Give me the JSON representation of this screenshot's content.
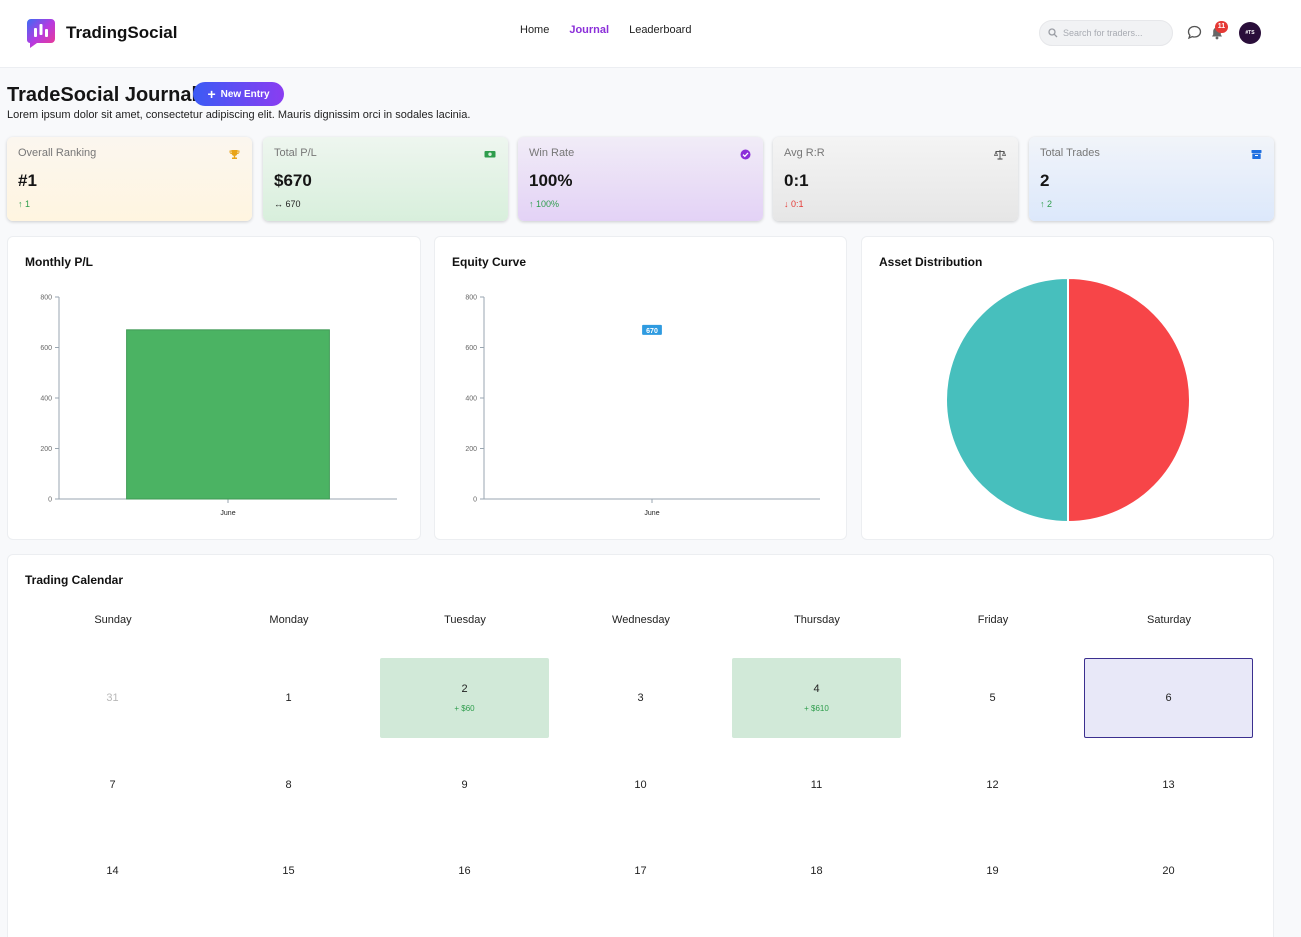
{
  "header": {
    "brand": "TradingSocial",
    "nav": [
      {
        "label": "Home",
        "active": false
      },
      {
        "label": "Journal",
        "active": true
      },
      {
        "label": "Leaderboard",
        "active": false
      }
    ],
    "search": {
      "placeholder": "Search for traders...",
      "value": ""
    },
    "notifications_count": "11",
    "avatar_text": "#TS"
  },
  "page": {
    "title": "TradeSocial Journal",
    "new_entry_label": "New Entry",
    "subtitle": "Lorem ipsum dolor sit amet, consectetur adipiscing elit. Mauris dignissim orci in sodales lacinia."
  },
  "stats": [
    {
      "label": "Overall Ranking",
      "value": "#1",
      "change": "↑ 1",
      "trend": "up",
      "icon": "trophy-icon",
      "color": "#e8a317"
    },
    {
      "label": "Total P/L",
      "value": "$670",
      "change": "↔ 670",
      "trend": "neutral",
      "icon": "cash-icon",
      "color": "#2e9d4c"
    },
    {
      "label": "Win Rate",
      "value": "100%",
      "change": "↑ 100%",
      "trend": "up",
      "icon": "check-badge-icon",
      "color": "#8b2fd9"
    },
    {
      "label": "Avg R:R",
      "value": "0:1",
      "change": "↓ 0:1",
      "trend": "down",
      "icon": "scale-icon",
      "color": "#555555"
    },
    {
      "label": "Total Trades",
      "value": "2",
      "change": "↑ 2",
      "trend": "up",
      "icon": "archive-icon",
      "color": "#1e6fe0"
    }
  ],
  "charts": {
    "monthly_title": "Monthly P/L",
    "equity_title": "Equity Curve",
    "asset_title": "Asset Distribution"
  },
  "chart_data": [
    {
      "type": "bar",
      "title": "Monthly P/L",
      "categories": [
        "June"
      ],
      "values": [
        670
      ],
      "ylim": [
        0,
        800
      ],
      "yticks": [
        "0",
        "200",
        "400",
        "600",
        "800"
      ],
      "color": "#4bb363"
    },
    {
      "type": "line",
      "title": "Equity Curve",
      "categories": [
        "June"
      ],
      "values": [
        670
      ],
      "data_labels": [
        "670"
      ],
      "ylim": [
        0,
        800
      ],
      "yticks": [
        "0",
        "200",
        "400",
        "600",
        "800"
      ],
      "color": "#2f9be0"
    },
    {
      "type": "pie",
      "title": "Asset Distribution",
      "values": [
        50,
        50
      ],
      "colors": [
        "#f74548",
        "#47bfbd"
      ]
    }
  ],
  "calendar": {
    "title": "Trading Calendar",
    "days": [
      "Sunday",
      "Monday",
      "Tuesday",
      "Wednesday",
      "Thursday",
      "Friday",
      "Saturday"
    ],
    "weeks": [
      [
        {
          "d": "31",
          "muted": true
        },
        {
          "d": "1"
        },
        {
          "d": "2",
          "pnl": "+ $60"
        },
        {
          "d": "3"
        },
        {
          "d": "4",
          "pnl": "+ $610"
        },
        {
          "d": "5"
        },
        {
          "d": "6",
          "today": true
        }
      ],
      [
        {
          "d": "7"
        },
        {
          "d": "8"
        },
        {
          "d": "9"
        },
        {
          "d": "10"
        },
        {
          "d": "11"
        },
        {
          "d": "12"
        },
        {
          "d": "13"
        }
      ],
      [
        {
          "d": "14"
        },
        {
          "d": "15"
        },
        {
          "d": "16"
        },
        {
          "d": "17"
        },
        {
          "d": "18"
        },
        {
          "d": "19"
        },
        {
          "d": "20"
        }
      ]
    ]
  }
}
